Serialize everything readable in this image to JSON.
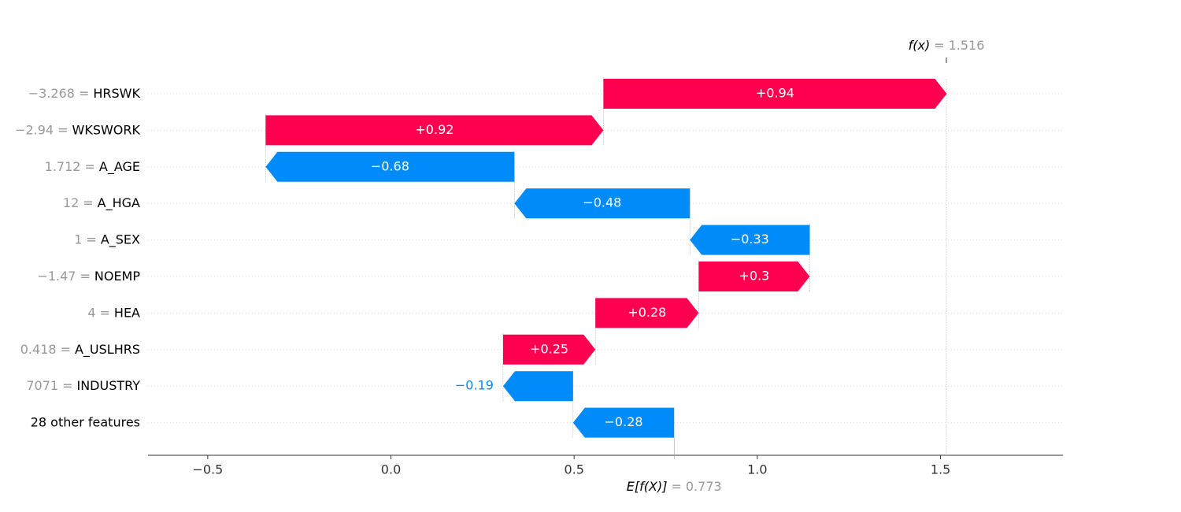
{
  "chart_data": {
    "type": "waterfall",
    "categories": [
      "HRSWK",
      "WKSWORK",
      "A_AGE",
      "A_HGA",
      "A_SEX",
      "NOEMP",
      "HEA",
      "A_USLHRS",
      "INDUSTRY",
      "28 other features"
    ],
    "feature_values": [
      "−3.268",
      "−2.94",
      "1.712",
      "12",
      "1",
      "−1.47",
      "4",
      "0.418",
      "7071",
      null
    ],
    "separator": "=",
    "values": [
      0.937,
      0.922,
      -0.679,
      -0.479,
      -0.327,
      0.303,
      0.282,
      0.252,
      -0.191,
      -0.276
    ],
    "value_labels": [
      "+0.94",
      "+0.92",
      "−0.68",
      "−0.48",
      "−0.33",
      "+0.3",
      "+0.28",
      "+0.25",
      "−0.19",
      "−0.28"
    ],
    "base_label": "E[f(X)]",
    "base_value": 0.773,
    "output_label": "f(x)",
    "output_value": 1.516,
    "positive_color": "#ff0051",
    "negative_color": "#008bfb",
    "xlim": [
      -0.663,
      1.834
    ],
    "xticks": [
      {
        "value": -0.5,
        "label": "−0.5"
      },
      {
        "value": 0,
        "label": "0.0"
      },
      0.5,
      {
        "value": 1,
        "label": "1.0"
      },
      1.5
    ]
  }
}
